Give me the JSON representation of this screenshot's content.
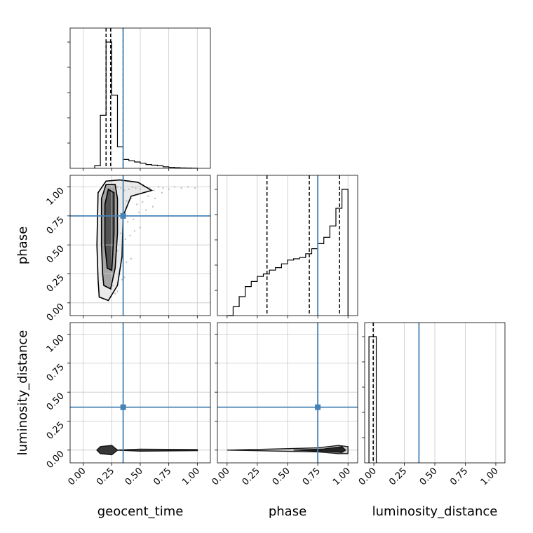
{
  "chart_data": {
    "type": "corner",
    "parameters": [
      "geocent_time",
      "phase",
      "luminosity_distance"
    ],
    "injection": {
      "geocent_time": 0.35,
      "phase": 0.75,
      "luminosity_distance": 0.37
    },
    "injection_color": "#4682b4",
    "ticks": [
      0.0,
      0.25,
      0.5,
      0.75,
      1.0
    ],
    "tick_labels": [
      "0.00",
      "0.25",
      "0.50",
      "0.75",
      "1.00"
    ],
    "grid": true,
    "histograms": {
      "geocent_time": {
        "bin_edges": [
          0.1,
          0.15,
          0.2,
          0.25,
          0.3,
          0.35,
          0.4,
          0.45,
          0.5,
          0.55,
          0.6,
          0.65,
          0.7,
          0.75,
          0.8,
          0.85,
          0.9,
          0.95,
          1.0
        ],
        "values": [
          0.02,
          0.42,
          1.0,
          0.58,
          0.17,
          0.07,
          0.06,
          0.05,
          0.04,
          0.03,
          0.025,
          0.02,
          0.012,
          0.008,
          0.005,
          0.003,
          0.002,
          0.001
        ],
        "quantiles": [
          0.2,
          0.24,
          0.35
        ]
      },
      "phase": {
        "bin_edges": [
          0.0,
          0.05,
          0.1,
          0.15,
          0.2,
          0.25,
          0.3,
          0.35,
          0.4,
          0.45,
          0.5,
          0.55,
          0.6,
          0.65,
          0.7,
          0.75,
          0.8,
          0.85,
          0.9,
          0.95,
          1.0
        ],
        "values": [
          0.0,
          0.07,
          0.15,
          0.23,
          0.27,
          0.31,
          0.33,
          0.36,
          0.38,
          0.41,
          0.44,
          0.45,
          0.46,
          0.49,
          0.53,
          0.57,
          0.62,
          0.71,
          0.85,
          1.0
        ],
        "quantiles": [
          0.33,
          0.68,
          0.93
        ]
      },
      "luminosity_distance": {
        "bin_edges": [
          -0.04,
          0.0,
          0.02
        ],
        "values": [
          1.0,
          1.0
        ],
        "quantiles": [
          -0.005
        ]
      }
    },
    "scatter_phase_vs_time": {
      "x": [
        0.22,
        0.25,
        0.28,
        0.3,
        0.33,
        0.36,
        0.4,
        0.43,
        0.46,
        0.5,
        0.54,
        0.58,
        0.62,
        0.66,
        0.7,
        0.75,
        0.8,
        0.86,
        0.92,
        0.98,
        0.38,
        0.42,
        0.47,
        0.52,
        0.57,
        0.63,
        0.69,
        0.35,
        0.39,
        0.44,
        0.49,
        0.55,
        0.61,
        0.33,
        0.37,
        0.41,
        0.45,
        0.5,
        0.3,
        0.34,
        0.38,
        0.42,
        0.28,
        0.32,
        0.36,
        0.26,
        0.3,
        0.34,
        0.24,
        0.28
      ],
      "y": [
        1.0,
        0.99,
        0.98,
        1.0,
        0.99,
        0.97,
        0.98,
        1.0,
        0.99,
        0.98,
        1.0,
        0.99,
        0.97,
        1.0,
        0.99,
        0.98,
        1.0,
        0.99,
        1.0,
        0.99,
        0.88,
        0.9,
        0.85,
        0.87,
        0.92,
        0.9,
        0.95,
        0.75,
        0.7,
        0.72,
        0.78,
        0.8,
        0.83,
        0.6,
        0.55,
        0.58,
        0.62,
        0.65,
        0.45,
        0.4,
        0.35,
        0.38,
        0.3,
        0.25,
        0.22,
        0.15,
        0.1,
        0.2,
        0.05,
        0.08
      ]
    },
    "contours_phase_vs_time": [
      [
        [
          0.14,
          0.05
        ],
        [
          0.22,
          0.02
        ],
        [
          0.3,
          0.15
        ],
        [
          0.34,
          0.4
        ],
        [
          0.35,
          0.75
        ],
        [
          0.42,
          0.92
        ],
        [
          0.6,
          0.97
        ],
        [
          0.48,
          1.04
        ],
        [
          0.32,
          1.06
        ],
        [
          0.2,
          1.05
        ],
        [
          0.13,
          0.95
        ],
        [
          0.12,
          0.5
        ],
        [
          0.13,
          0.2
        ]
      ],
      [
        [
          0.18,
          0.15
        ],
        [
          0.24,
          0.12
        ],
        [
          0.28,
          0.3
        ],
        [
          0.3,
          0.6
        ],
        [
          0.3,
          0.9
        ],
        [
          0.28,
          1.02
        ],
        [
          0.2,
          1.02
        ],
        [
          0.16,
          0.9
        ],
        [
          0.16,
          0.5
        ],
        [
          0.17,
          0.25
        ]
      ],
      [
        [
          0.21,
          0.3
        ],
        [
          0.25,
          0.28
        ],
        [
          0.27,
          0.6
        ],
        [
          0.27,
          0.95
        ],
        [
          0.22,
          0.98
        ],
        [
          0.19,
          0.85
        ],
        [
          0.19,
          0.5
        ]
      ]
    ],
    "contours_distance_vs_time": [
      [
        [
          0.12,
          0.0
        ],
        [
          0.15,
          0.03
        ],
        [
          0.25,
          0.04
        ],
        [
          0.3,
          0.0
        ],
        [
          0.25,
          -0.04
        ],
        [
          0.15,
          -0.03
        ]
      ],
      [
        [
          0.3,
          0.0
        ],
        [
          0.5,
          0.008
        ],
        [
          1.0,
          0.004
        ],
        [
          1.0,
          -0.004
        ],
        [
          0.5,
          -0.008
        ]
      ]
    ],
    "contours_distance_vs_phase": [
      [
        [
          0.0,
          0.0
        ],
        [
          0.4,
          0.01
        ],
        [
          0.75,
          0.02
        ],
        [
          0.92,
          0.04
        ],
        [
          1.0,
          0.03
        ],
        [
          1.0,
          -0.03
        ],
        [
          0.92,
          -0.03
        ],
        [
          0.75,
          -0.015
        ],
        [
          0.4,
          -0.008
        ]
      ],
      [
        [
          0.55,
          0.0
        ],
        [
          0.8,
          0.01
        ],
        [
          0.95,
          0.03
        ],
        [
          0.98,
          0.0
        ],
        [
          0.95,
          -0.02
        ],
        [
          0.8,
          -0.01
        ]
      ]
    ]
  }
}
